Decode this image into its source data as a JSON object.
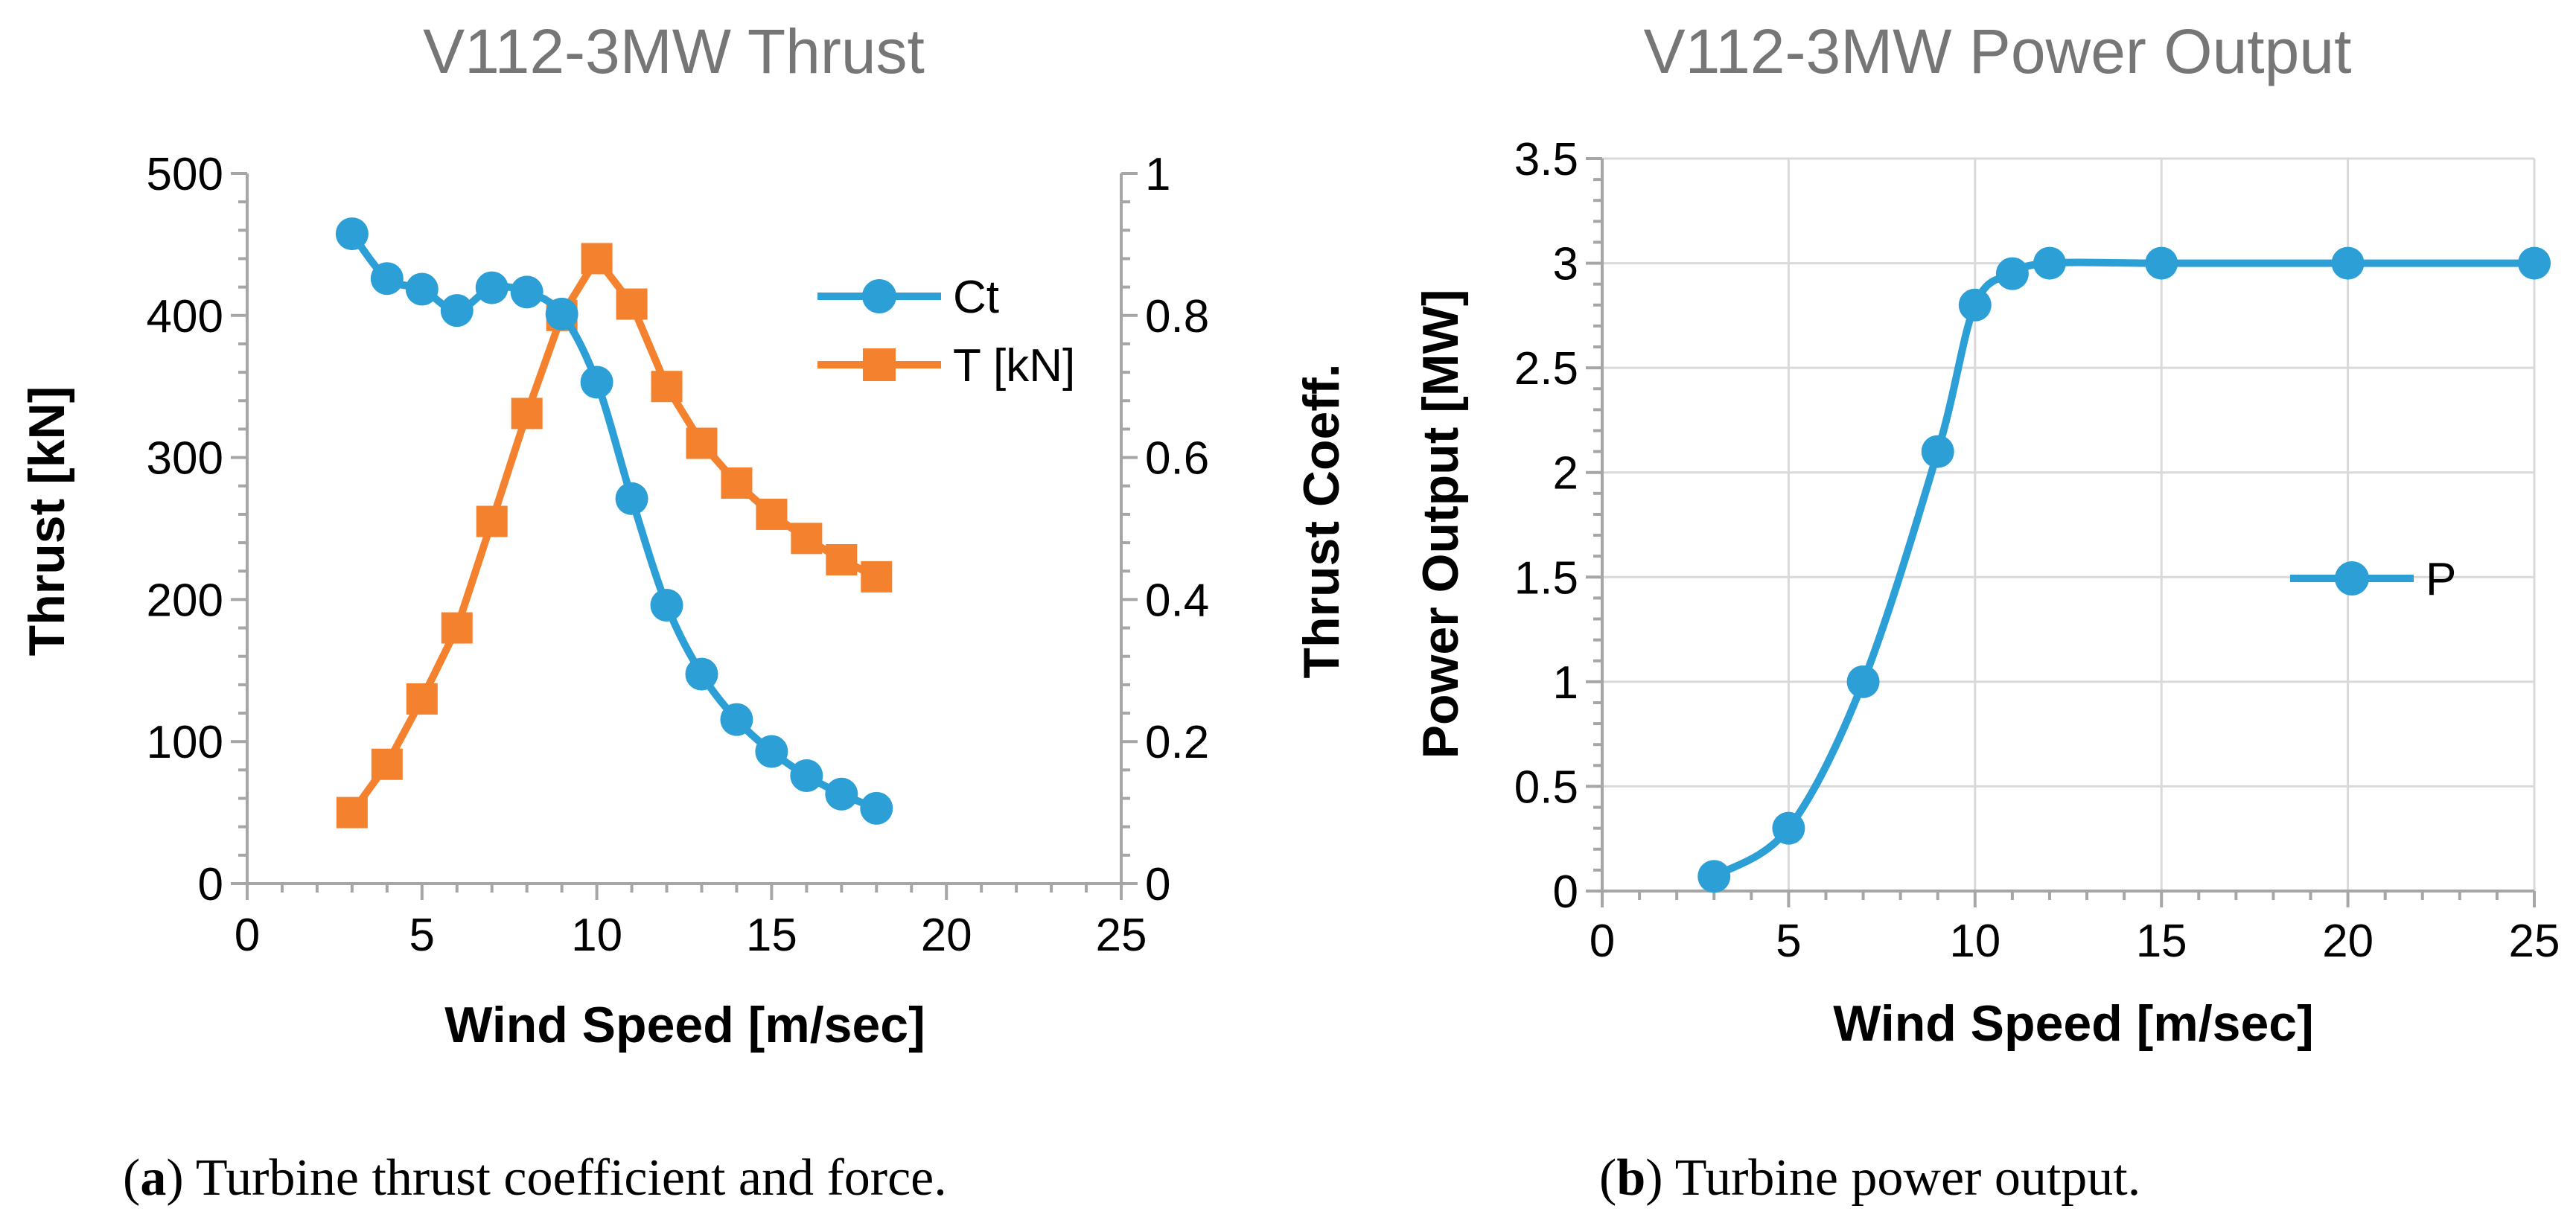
{
  "colors": {
    "ct": "#2B9FD6",
    "thrust": "#F4812E",
    "axis": "#A6A6A6",
    "grid": "#D9D9D9",
    "title": "#767676"
  },
  "chart_data": [
    {
      "type": "line",
      "title": "V112-3MW Thrust",
      "xlabel": "Wind Speed [m/sec]",
      "ylabel": "Thrust [kN]",
      "y2label": "Thrust Coeff.",
      "xlim": [
        0,
        25
      ],
      "ylim": [
        0,
        500
      ],
      "y2lim": [
        0,
        1
      ],
      "xticks": [
        "0",
        "5",
        "10",
        "15",
        "20",
        "25"
      ],
      "yticks": [
        "0",
        "100",
        "200",
        "300",
        "400",
        "500"
      ],
      "y2ticks": [
        "0",
        "0.2",
        "0.4",
        "0.6",
        "0.8",
        "1"
      ],
      "grid": false,
      "legend_position": "top-right",
      "series": [
        {
          "name": "Ct",
          "axis": "right",
          "marker": "circle",
          "x": [
            3,
            4,
            5,
            6,
            7,
            8,
            9,
            10,
            11,
            12,
            13,
            14,
            15,
            16,
            17,
            18
          ],
          "y": [
            0.915,
            0.852,
            0.837,
            0.807,
            0.839,
            0.833,
            0.802,
            0.706,
            0.542,
            0.392,
            0.295,
            0.231,
            0.186,
            0.152,
            0.126,
            0.106
          ]
        },
        {
          "name": "T [kN]",
          "axis": "left",
          "marker": "square",
          "x": [
            3,
            4,
            5,
            6,
            7,
            8,
            9,
            10,
            11,
            12,
            13,
            14,
            15,
            16,
            17,
            18
          ],
          "y": [
            50,
            84,
            130,
            180,
            255,
            331,
            400,
            440,
            408,
            350,
            310,
            282,
            260,
            243,
            228,
            216
          ]
        }
      ]
    },
    {
      "type": "line",
      "title": "V112-3MW Power Output",
      "xlabel": "Wind Speed [m/sec]",
      "ylabel": "Power Output [MW]",
      "xlim": [
        0,
        25
      ],
      "ylim": [
        0,
        3.5
      ],
      "xticks": [
        "0",
        "5",
        "10",
        "15",
        "20",
        "25"
      ],
      "yticks": [
        "0",
        "0.5",
        "1",
        "1.5",
        "2",
        "2.5",
        "3",
        "3.5"
      ],
      "grid": true,
      "legend_position": "right",
      "series": [
        {
          "name": "P",
          "marker": "circle",
          "x": [
            3,
            5,
            7,
            9,
            10,
            11,
            12,
            15,
            20,
            25
          ],
          "y": [
            0.07,
            0.3,
            1.0,
            2.1,
            2.8,
            2.95,
            3.0,
            3.0,
            3.0,
            3.0
          ]
        }
      ]
    }
  ],
  "captions": [
    {
      "label": "a",
      "text": " Turbine thrust coefficient and force."
    },
    {
      "label": "b",
      "text": " Turbine power output."
    }
  ]
}
